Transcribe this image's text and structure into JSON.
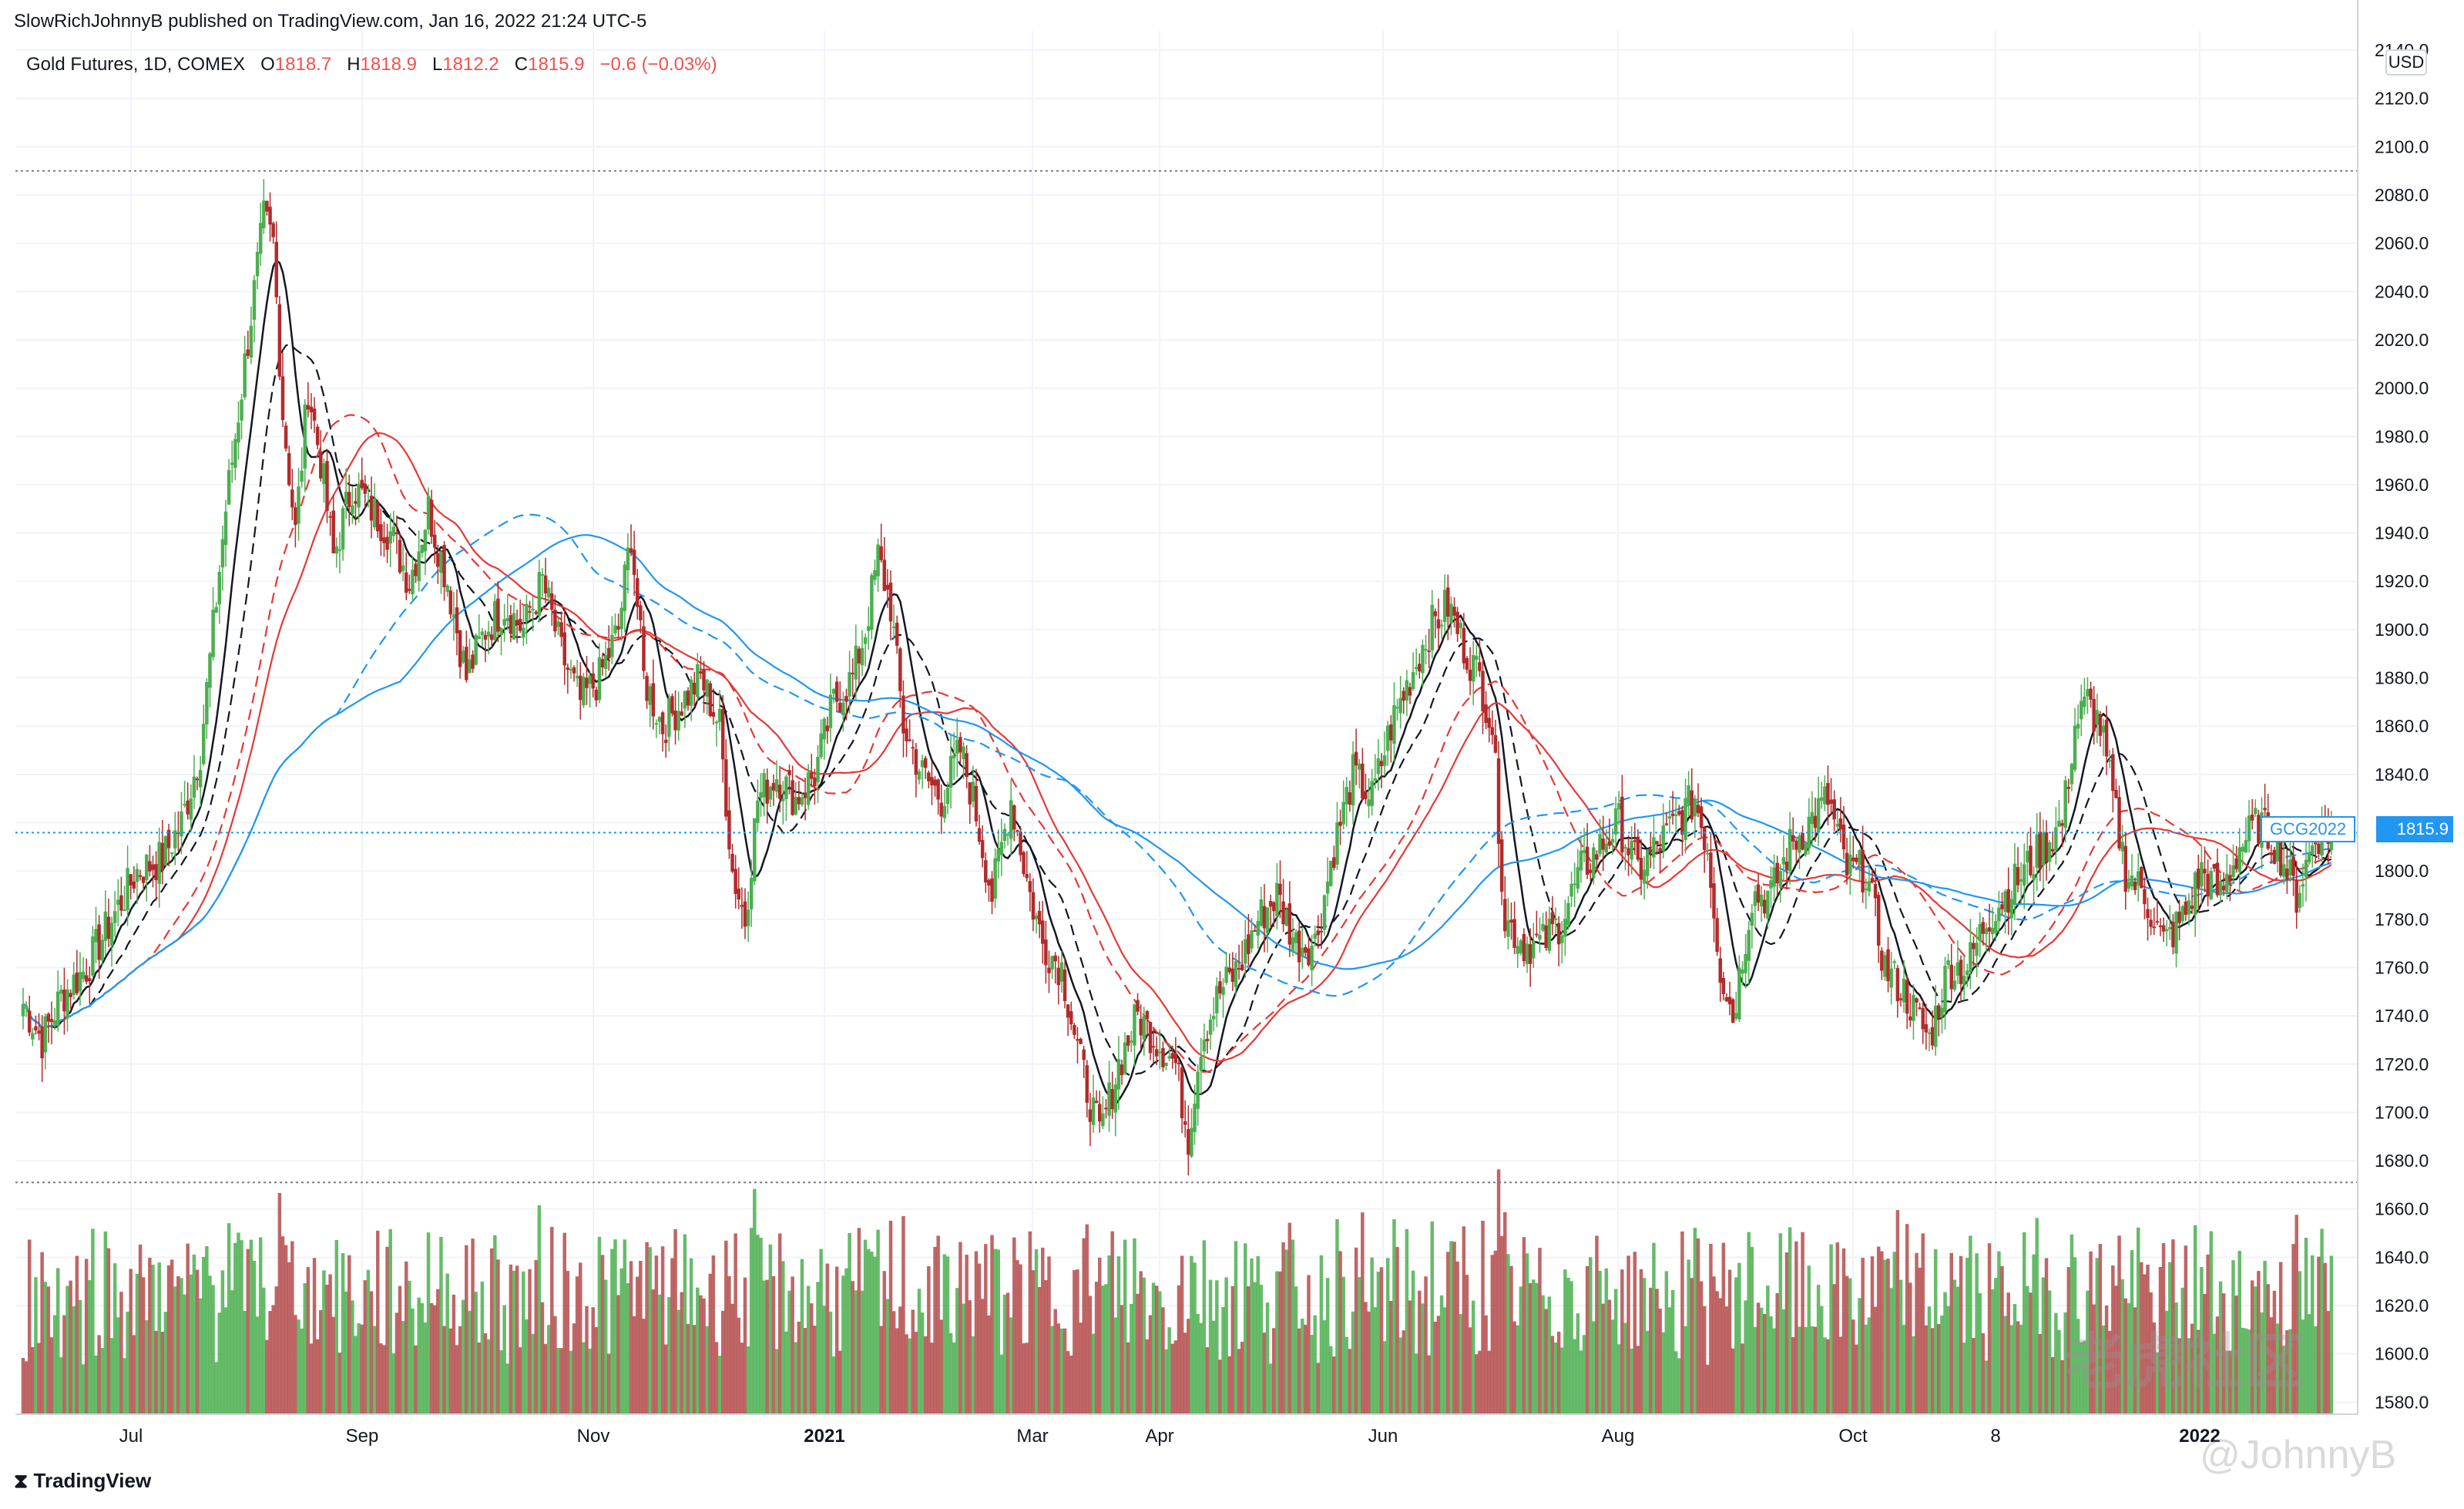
{
  "header": "SlowRichJohnnyB published on TradingView.com, Jan 16, 2022 21:24 UTC-5",
  "legend": {
    "symbol": "Gold Futures, 1D, COMEX",
    "o_label": "O",
    "o_value": "1818.7",
    "h_label": "H",
    "h_value": "1818.9",
    "l_label": "L",
    "l_value": "1812.2",
    "c_label": "C",
    "c_value": "1815.9",
    "change": "−0.6 (−0.03%)"
  },
  "currency": "USD",
  "symbol_tag": "GCG2022",
  "last_price_tag": "1815.9",
  "brand": "TradingView",
  "watermark": {
    "line1": "老虎社区",
    "line2": "@JohnnyB"
  },
  "colors": {
    "up": "#4caf50",
    "down": "#b22b2b",
    "vol_up": "#4caf50",
    "vol_down": "#b44b4b",
    "ma_black": "#131722",
    "ma_red": "#e53935",
    "ma_blue": "#2196f3",
    "grid": "#f0f3fa"
  },
  "chart_data": {
    "type": "candlestick",
    "title": "Gold Futures, 1D, COMEX",
    "x_ticks": [
      "Jul",
      "Sep",
      "Nov",
      "2021",
      "Mar",
      "Apr",
      "Jun",
      "Aug",
      "Oct",
      "8",
      "2022"
    ],
    "y_ticks": [
      "1580.0",
      "1600.0",
      "1620.0",
      "1640.0",
      "1660.0",
      "1680.0",
      "1700.0",
      "1720.0",
      "1740.0",
      "1760.0",
      "1780.0",
      "1800.0",
      "1820.0",
      "1840.0",
      "1860.0",
      "1880.0",
      "1900.0",
      "1920.0",
      "1940.0",
      "1960.0",
      "1980.0",
      "2000.0",
      "2020.0",
      "2040.0",
      "2060.0",
      "2080.0",
      "2100.0",
      "2120.0",
      "2140.0"
    ],
    "ylim": [
      1575,
      2148
    ],
    "range_high": 2090,
    "range_low": 1671,
    "last_close": 1815.9,
    "close_path": [
      [
        0,
        1745
      ],
      [
        6,
        1730
      ],
      [
        12,
        1748
      ],
      [
        20,
        1760
      ],
      [
        28,
        1780
      ],
      [
        36,
        1800
      ],
      [
        44,
        1805
      ],
      [
        50,
        1820
      ],
      [
        56,
        1850
      ],
      [
        60,
        1900
      ],
      [
        64,
        1950
      ],
      [
        68,
        1990
      ],
      [
        72,
        2030
      ],
      [
        76,
        2070
      ],
      [
        79,
        2060
      ],
      [
        82,
        1990
      ],
      [
        86,
        1940
      ],
      [
        90,
        2000
      ],
      [
        94,
        1970
      ],
      [
        98,
        1930
      ],
      [
        104,
        1960
      ],
      [
        110,
        1950
      ],
      [
        116,
        1940
      ],
      [
        122,
        1920
      ],
      [
        128,
        1950
      ],
      [
        134,
        1920
      ],
      [
        140,
        1880
      ],
      [
        146,
        1900
      ],
      [
        152,
        1910
      ],
      [
        158,
        1900
      ],
      [
        164,
        1920
      ],
      [
        170,
        1890
      ],
      [
        176,
        1870
      ],
      [
        182,
        1880
      ],
      [
        188,
        1900
      ],
      [
        192,
        1940
      ],
      [
        196,
        1880
      ],
      [
        202,
        1860
      ],
      [
        208,
        1870
      ],
      [
        214,
        1880
      ],
      [
        220,
        1860
      ],
      [
        224,
        1800
      ],
      [
        228,
        1780
      ],
      [
        232,
        1830
      ],
      [
        238,
        1840
      ],
      [
        244,
        1830
      ],
      [
        250,
        1840
      ],
      [
        256,
        1870
      ],
      [
        262,
        1880
      ],
      [
        266,
        1900
      ],
      [
        270,
        1930
      ],
      [
        274,
        1910
      ],
      [
        278,
        1860
      ],
      [
        284,
        1840
      ],
      [
        290,
        1830
      ],
      [
        296,
        1850
      ],
      [
        300,
        1830
      ],
      [
        306,
        1790
      ],
      [
        312,
        1830
      ],
      [
        318,
        1790
      ],
      [
        322,
        1770
      ],
      [
        328,
        1760
      ],
      [
        334,
        1720
      ],
      [
        340,
        1690
      ],
      [
        346,
        1720
      ],
      [
        352,
        1740
      ],
      [
        358,
        1730
      ],
      [
        364,
        1720
      ],
      [
        368,
        1690
      ],
      [
        372,
        1730
      ],
      [
        378,
        1750
      ],
      [
        384,
        1760
      ],
      [
        390,
        1780
      ],
      [
        396,
        1790
      ],
      [
        402,
        1770
      ],
      [
        408,
        1770
      ],
      [
        414,
        1810
      ],
      [
        420,
        1840
      ],
      [
        426,
        1830
      ],
      [
        432,
        1860
      ],
      [
        438,
        1880
      ],
      [
        444,
        1900
      ],
      [
        450,
        1910
      ],
      [
        456,
        1890
      ],
      [
        460,
        1880
      ],
      [
        464,
        1860
      ],
      [
        468,
        1780
      ],
      [
        474,
        1770
      ],
      [
        480,
        1770
      ],
      [
        486,
        1780
      ],
      [
        492,
        1800
      ],
      [
        498,
        1810
      ],
      [
        504,
        1820
      ],
      [
        510,
        1800
      ],
      [
        516,
        1810
      ],
      [
        522,
        1820
      ],
      [
        528,
        1830
      ],
      [
        532,
        1810
      ],
      [
        536,
        1760
      ],
      [
        540,
        1740
      ],
      [
        546,
        1790
      ],
      [
        552,
        1790
      ],
      [
        558,
        1810
      ],
      [
        564,
        1820
      ],
      [
        570,
        1830
      ],
      [
        576,
        1800
      ],
      [
        582,
        1800
      ],
      [
        588,
        1760
      ],
      [
        594,
        1750
      ],
      [
        598,
        1740
      ],
      [
        602,
        1730
      ],
      [
        608,
        1760
      ],
      [
        614,
        1760
      ],
      [
        620,
        1780
      ],
      [
        626,
        1790
      ],
      [
        632,
        1800
      ],
      [
        638,
        1810
      ],
      [
        644,
        1820
      ],
      [
        648,
        1860
      ],
      [
        652,
        1870
      ],
      [
        656,
        1860
      ],
      [
        660,
        1830
      ],
      [
        664,
        1800
      ],
      [
        670,
        1790
      ],
      [
        676,
        1770
      ],
      [
        682,
        1780
      ],
      [
        688,
        1800
      ],
      [
        694,
        1790
      ],
      [
        700,
        1810
      ],
      [
        706,
        1820
      ],
      [
        712,
        1810
      ],
      [
        718,
        1790
      ],
      [
        724,
        1815
      ],
      [
        728,
        1815.9
      ]
    ],
    "volume_range": [
      1500,
      1650
    ]
  }
}
